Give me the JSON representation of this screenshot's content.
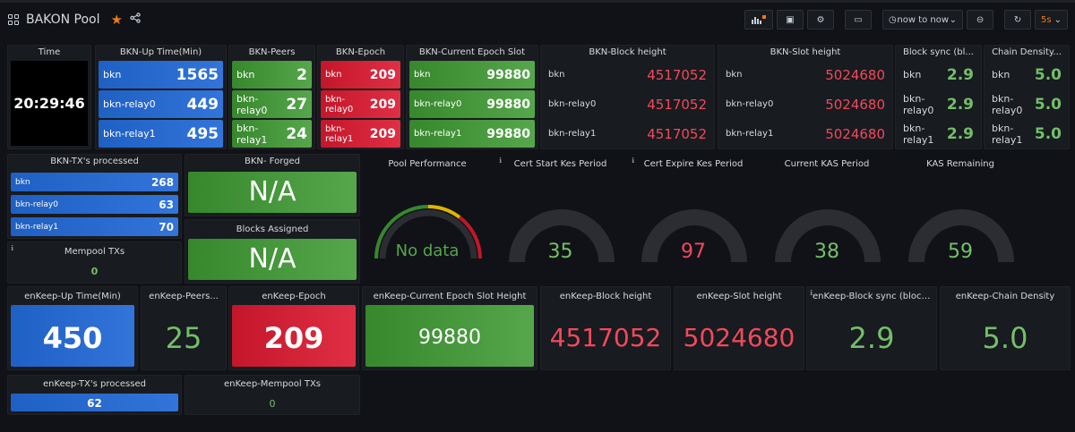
{
  "header": {
    "title": "BAKON Pool",
    "time_range": "now to now",
    "refresh_interval": "5s"
  },
  "time_panel": {
    "title": "Time",
    "value": "20:29:46"
  },
  "bkn_uptime": {
    "title": "BKN-Up Time(Min)",
    "rows": [
      {
        "label": "bkn",
        "value": "1565"
      },
      {
        "label": "bkn-relay0",
        "value": "449"
      },
      {
        "label": "bkn-relay1",
        "value": "495"
      }
    ]
  },
  "bkn_peers": {
    "title": "BKN-Peers",
    "rows": [
      {
        "label": "bkn",
        "value": "2"
      },
      {
        "label": "bkn-relay0",
        "value": "27"
      },
      {
        "label": "bkn-relay1",
        "value": "24"
      }
    ]
  },
  "bkn_epoch": {
    "title": "BKN-Epoch",
    "rows": [
      {
        "label": "bkn",
        "value": "209"
      },
      {
        "label": "bkn-relay0",
        "value": "209"
      },
      {
        "label": "bkn-relay1",
        "value": "209"
      }
    ]
  },
  "bkn_slot": {
    "title": "BKN-Current Epoch Slot",
    "rows": [
      {
        "label": "bkn",
        "value": "99880"
      },
      {
        "label": "bkn-relay0",
        "value": "99880"
      },
      {
        "label": "bkn-relay1",
        "value": "99880"
      }
    ]
  },
  "bkn_block_height": {
    "title": "BKN-Block height",
    "rows": [
      {
        "label": "bkn",
        "value": "4517052"
      },
      {
        "label": "bkn-relay0",
        "value": "4517052"
      },
      {
        "label": "bkn-relay1",
        "value": "4517052"
      }
    ]
  },
  "bkn_slot_height": {
    "title": "BKN-Slot height",
    "rows": [
      {
        "label": "bkn",
        "value": "5024680"
      },
      {
        "label": "bkn-relay0",
        "value": "5024680"
      },
      {
        "label": "bkn-relay1",
        "value": "5024680"
      }
    ]
  },
  "block_sync": {
    "title": "Block sync (bl...",
    "rows": [
      {
        "label": "bkn",
        "value": "2.9"
      },
      {
        "label": "bkn-relay0",
        "value": "2.9"
      },
      {
        "label": "bkn-relay1",
        "value": "2.9"
      }
    ]
  },
  "chain_density": {
    "title": "Chain Density...",
    "rows": [
      {
        "label": "bkn",
        "value": "5.0"
      },
      {
        "label": "bkn-relay0",
        "value": "5.0"
      },
      {
        "label": "bkn-relay1",
        "value": "5.0"
      }
    ]
  },
  "bkn_tx": {
    "title": "BKN-TX's processed",
    "rows": [
      {
        "label": "bkn",
        "value": "268"
      },
      {
        "label": "bkn-relay0",
        "value": "63"
      },
      {
        "label": "bkn-relay1",
        "value": "70"
      }
    ]
  },
  "mempool": {
    "title": "Mempool TXs",
    "value": "0"
  },
  "bkn_forged": {
    "title": "BKN- Forged",
    "value": "N/A"
  },
  "blocks_assigned": {
    "title": "Blocks Assigned",
    "value": "N/A"
  },
  "pool_performance": {
    "title": "Pool Performance",
    "value": "No data"
  },
  "cert_start": {
    "title": "Cert Start Kes Period",
    "value": "35"
  },
  "cert_expire": {
    "title": "Cert Expire Kes Period",
    "value": "97"
  },
  "current_kas": {
    "title": "Current KAS Period",
    "value": "38"
  },
  "kas_remaining": {
    "title": "KAS Remaining",
    "value": "59"
  },
  "enkeep_uptime": {
    "title": "enKeep-Up Time(Min)",
    "value": "450"
  },
  "enkeep_peers": {
    "title": "enKeep-Peers...",
    "value": "25"
  },
  "enkeep_epoch": {
    "title": "enKeep-Epoch",
    "value": "209"
  },
  "enkeep_slot": {
    "title": "enKeep-Current Epoch Slot Height",
    "value": "99880"
  },
  "enkeep_block": {
    "title": "enKeep-Block height",
    "value": "4517052"
  },
  "enkeep_slot_height": {
    "title": "enKeep-Slot height",
    "value": "5024680"
  },
  "enkeep_sync": {
    "title": "enKeep-Block sync (blocks...",
    "value": "2.9"
  },
  "enkeep_density": {
    "title": "enKeep-Chain Density",
    "value": "5.0"
  },
  "enkeep_tx": {
    "title": "enKeep-TX's processed",
    "value": "62"
  },
  "enkeep_mempool": {
    "title": "enKeep-Mempool TXs",
    "value": "0"
  },
  "colors": {
    "blue": "#3274d9",
    "green": "#56a64b",
    "red": "#e02f44",
    "green_text": "#73bf69",
    "red_text": "#f2495c"
  }
}
